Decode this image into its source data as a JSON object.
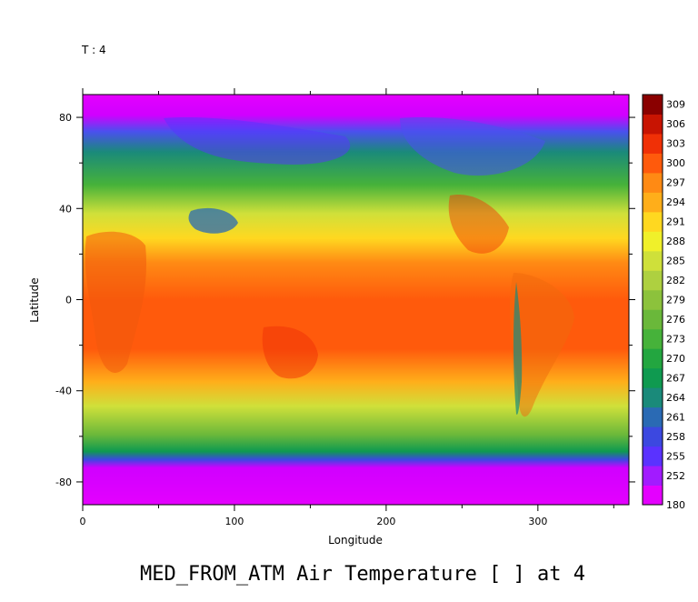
{
  "chart_data": {
    "type": "heatmap",
    "title": "MED_FROM_ATM Air Temperature [ ] at 4",
    "time_label": "T : 4",
    "xlabel": "Longitude",
    "ylabel": "Latitude",
    "xlim": [
      0,
      360
    ],
    "ylim": [
      -90,
      90
    ],
    "x_ticks": [
      0,
      100,
      200,
      300
    ],
    "y_ticks": [
      -80,
      -40,
      0,
      40,
      80
    ],
    "colorbar": {
      "labels": [
        "180",
        "252",
        "255",
        "258",
        "261",
        "264",
        "267",
        "270",
        "273",
        "276",
        "279",
        "282",
        "285",
        "288",
        "291",
        "294",
        "297",
        "300",
        "303",
        "306",
        "309"
      ],
      "colors": [
        "#e400ff",
        "#a21bff",
        "#5a32ff",
        "#3c48e0",
        "#2a6ab4",
        "#1a8a7a",
        "#0f9a50",
        "#23a640",
        "#46b23a",
        "#6ab83a",
        "#8cc23c",
        "#aed040",
        "#cfe03a",
        "#f0f02a",
        "#ffd820",
        "#ffae1a",
        "#ff8a14",
        "#ff5a0c",
        "#f03006",
        "#c81402",
        "#8a0000"
      ]
    }
  }
}
